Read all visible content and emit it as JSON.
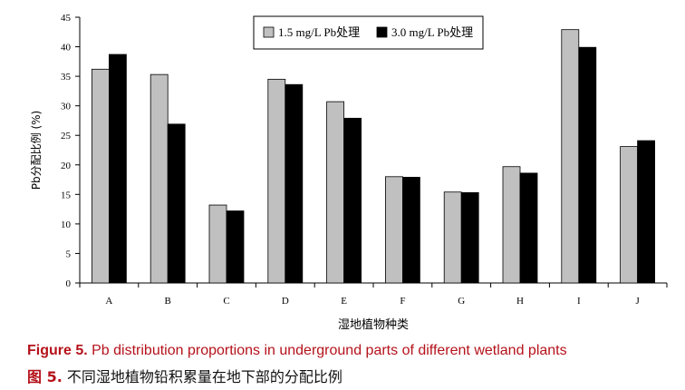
{
  "chart_data": {
    "type": "bar",
    "title": "",
    "xlabel": "湿地植物种类",
    "ylabel": "Pb分配比例 (%)",
    "ylim": [
      0,
      45
    ],
    "yticks": [
      "0",
      "5",
      "10",
      "15",
      "20",
      "25",
      "30",
      "35",
      "40",
      "45"
    ],
    "categories": [
      "A",
      "B",
      "C",
      "D",
      "E",
      "F",
      "G",
      "H",
      "I",
      "J"
    ],
    "series": [
      {
        "name": "1.5 mg/L Pb处理",
        "color": "#c0c0c0",
        "values": [
          36.2,
          35.3,
          13.2,
          34.5,
          30.7,
          18.0,
          15.4,
          19.7,
          42.9,
          23.1
        ]
      },
      {
        "name": "3.0 mg/L Pb处理",
        "color": "#000000",
        "values": [
          38.7,
          26.9,
          12.2,
          33.6,
          27.9,
          17.9,
          15.3,
          18.6,
          39.9,
          24.1
        ]
      }
    ],
    "grid": false,
    "legend_position": "top-center"
  },
  "caption": {
    "en_label": "Figure 5.",
    "en_text": " Pb distribution proportions in underground parts of different wetland plants",
    "zh_label": "图 5.",
    "zh_text": "  不同湿地植物铅积累量在地下部的分配比例"
  }
}
